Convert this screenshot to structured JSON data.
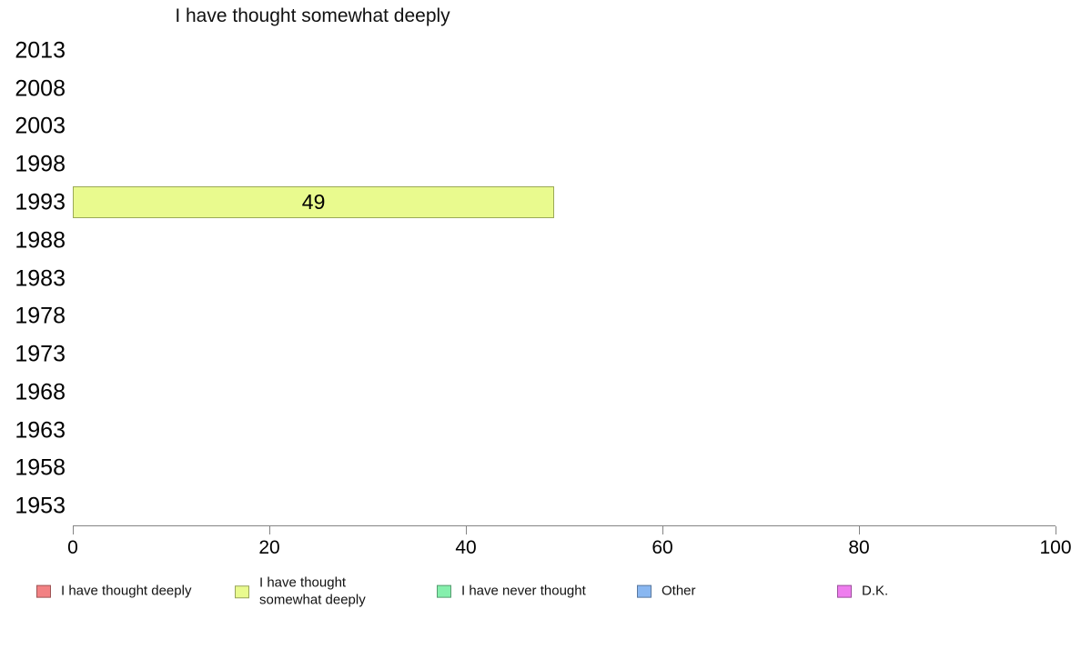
{
  "chart_data": {
    "type": "bar",
    "orientation": "horizontal",
    "title": "I have thought somewhat deeply",
    "categories": [
      "2013",
      "2008",
      "2003",
      "1998",
      "1993",
      "1988",
      "1983",
      "1978",
      "1973",
      "1968",
      "1963",
      "1958",
      "1953"
    ],
    "series": [
      {
        "name": "I have thought deeply",
        "color": "#f28183",
        "values": [
          null,
          null,
          null,
          null,
          null,
          null,
          null,
          null,
          null,
          null,
          null,
          null,
          null
        ]
      },
      {
        "name": "I have thought somewhat deeply",
        "color": "#e9fa8e",
        "values": [
          null,
          null,
          null,
          null,
          49,
          null,
          null,
          null,
          null,
          null,
          null,
          null,
          null
        ]
      },
      {
        "name": "I have never thought",
        "color": "#85efac",
        "values": [
          null,
          null,
          null,
          null,
          null,
          null,
          null,
          null,
          null,
          null,
          null,
          null,
          null
        ]
      },
      {
        "name": "Other",
        "color": "#89b7f1",
        "values": [
          null,
          null,
          null,
          null,
          null,
          null,
          null,
          null,
          null,
          null,
          null,
          null,
          null
        ]
      },
      {
        "name": "D.K.",
        "color": "#ee7dee",
        "values": [
          null,
          null,
          null,
          null,
          null,
          null,
          null,
          null,
          null,
          null,
          null,
          null,
          null
        ]
      }
    ],
    "xlim": [
      0,
      100
    ],
    "x_ticks": [
      0,
      20,
      40,
      60,
      80,
      100
    ],
    "grid": false,
    "bar_labels_visible": true,
    "legend_position": "bottom",
    "axis_color": "#848484",
    "background_color": "#ffffff"
  }
}
